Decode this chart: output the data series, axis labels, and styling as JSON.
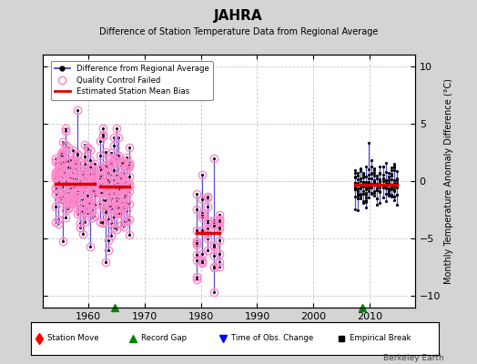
{
  "title": "JAHRA",
  "subtitle": "Difference of Station Temperature Data from Regional Average",
  "ylabel": "Monthly Temperature Anomaly Difference (°C)",
  "xlim": [
    1952,
    2018
  ],
  "ylim": [
    -11,
    11
  ],
  "yticks": [
    -10,
    -5,
    0,
    5,
    10
  ],
  "xticks": [
    1960,
    1970,
    1980,
    1990,
    2000,
    2010
  ],
  "bg_color": "#d4d4d4",
  "plot_bg": "#ffffff",
  "grid_color": "#bbbbbb",
  "watermark": "Berkeley Earth",
  "seg1": {
    "years_start": 1954.3,
    "years_end": 1961.2,
    "n_cols": 17,
    "bias": -0.2,
    "amplitude": 3.2,
    "pts_per_col": 12,
    "all_qc": true
  },
  "seg2": {
    "years_start": 1962.2,
    "years_end": 1967.3,
    "n_cols": 12,
    "bias": -0.5,
    "amplitude": 3.5,
    "pts_per_col": 12,
    "all_qc": true
  },
  "seg3": {
    "years_start": 1979.2,
    "years_end": 1983.3,
    "n_cols": 5,
    "bias": -4.5,
    "amplitude": 4.5,
    "pts_per_col": 10,
    "all_qc": true
  },
  "seg4": {
    "years_start": 2007.3,
    "years_end": 2014.8,
    "n_cols": 16,
    "bias": -0.3,
    "amplitude": 1.5,
    "pts_per_col": 12,
    "all_qc": false
  },
  "record_gaps": [
    1964.8,
    2008.7
  ],
  "bias_lines": [
    {
      "x0": 1954.3,
      "x1": 1961.2,
      "y": -0.2
    },
    {
      "x0": 1962.2,
      "x1": 1967.3,
      "y": -0.5
    },
    {
      "x0": 1979.2,
      "x1": 1983.3,
      "y": -4.5
    },
    {
      "x0": 2007.3,
      "x1": 2014.8,
      "y": -0.3
    }
  ],
  "blue_col": "#3333cc",
  "qc_col": "#ff88cc",
  "red_col": "#dd0000",
  "green_col": "#008800"
}
